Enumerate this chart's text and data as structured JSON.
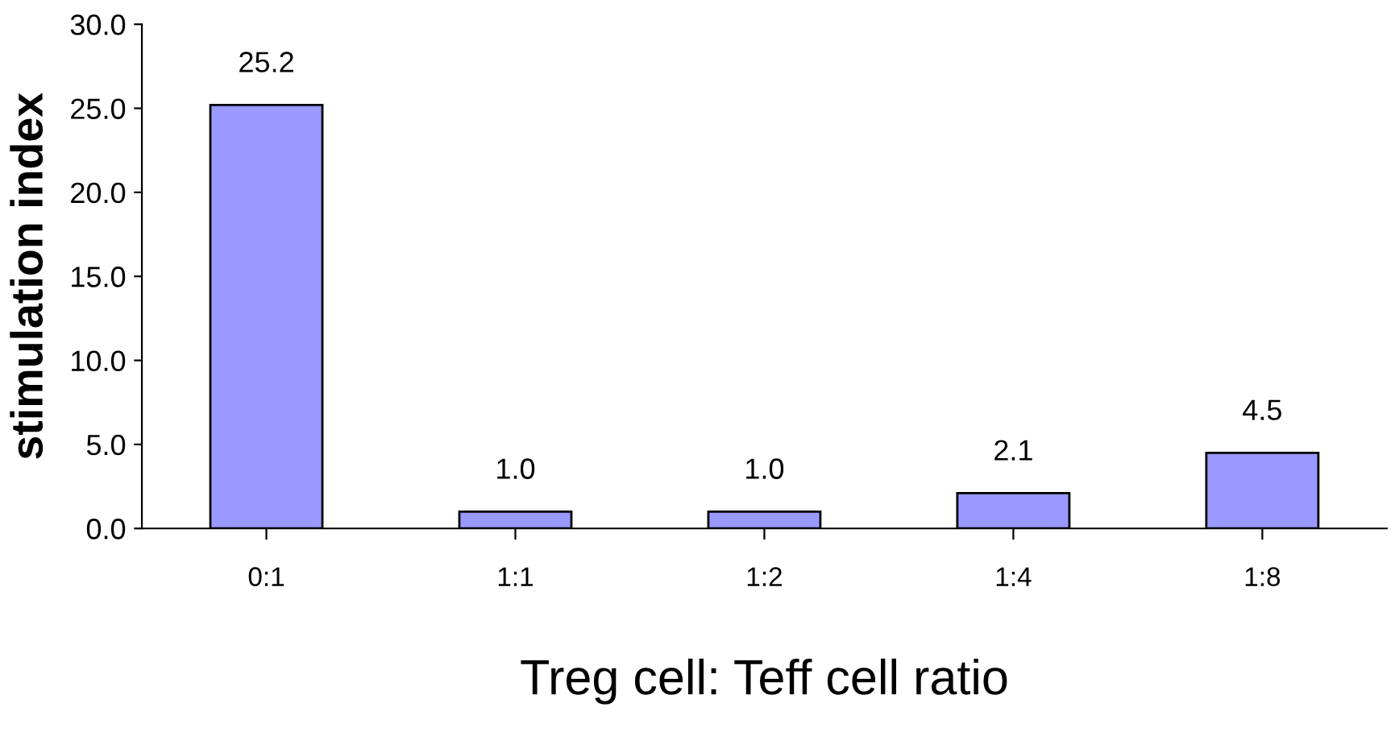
{
  "chart_data": {
    "type": "bar",
    "xlabel": "Treg cell: Teff cell ratio",
    "ylabel": "stimulation index",
    "categories": [
      "0:1",
      "1:1",
      "1:2",
      "1:4",
      "1:8"
    ],
    "values": [
      25.2,
      1.0,
      1.0,
      2.1,
      4.5
    ],
    "color": "#9999ff",
    "ylim": [
      0,
      30
    ],
    "yticks": [
      {
        "value": 0,
        "label": "0.0"
      },
      {
        "value": 5,
        "label": "5.0"
      },
      {
        "value": 10,
        "label": "10.0"
      },
      {
        "value": 15,
        "label": "15.0"
      },
      {
        "value": 20,
        "label": "20.0"
      },
      {
        "value": 25,
        "label": "25.0"
      },
      {
        "value": 30,
        "label": "30.0"
      }
    ],
    "value_labels": [
      "25.2",
      "1.0",
      "1.0",
      "2.1",
      "4.5"
    ],
    "grid": false,
    "legend": false
  }
}
